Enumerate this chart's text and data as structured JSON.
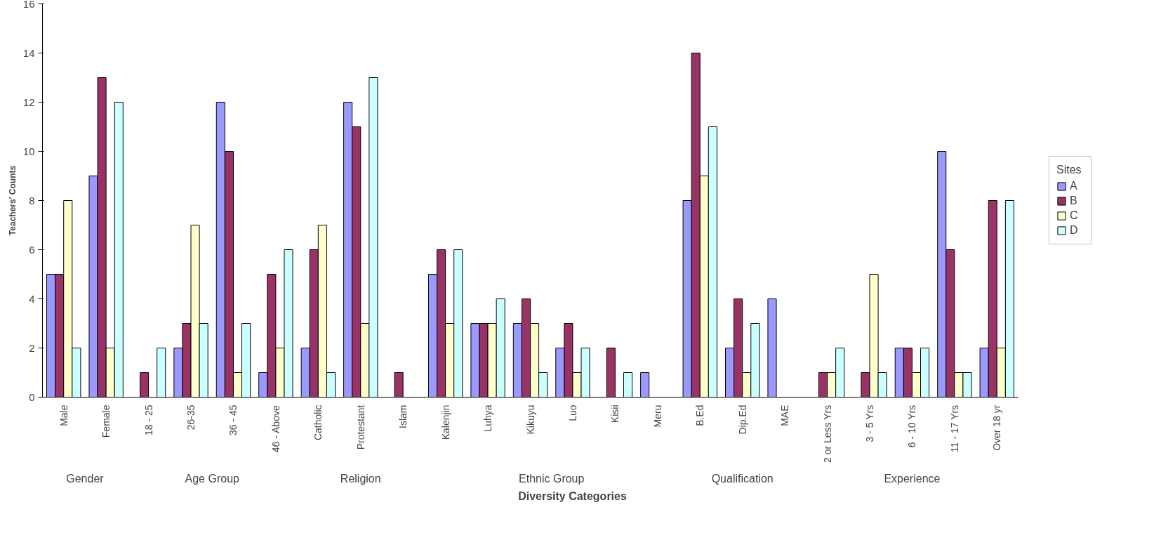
{
  "chart_data": {
    "type": "bar",
    "xlabel": "Diversity Categories",
    "ylabel": "Teachers' Counts",
    "legend_title": "Sites",
    "legend": "right",
    "categories": [
      "Male",
      "Female",
      "18 - 25",
      "26-35",
      "36 - 45",
      "46 - Above",
      "Catholic",
      "Protestant",
      "Islam",
      "Kalenjin",
      "Luhya",
      "Kikuyu",
      "Luo",
      "Kisii",
      "Meru",
      "B.Ed",
      "Dip.Ed",
      "MAE",
      "2 or Less Yrs",
      "3 - 5 Yrs",
      "6 - 10 Yrs",
      "11 - 17 Yrs",
      "Over 18 yr"
    ],
    "series": [
      {
        "name": "A",
        "color": "#9999ff",
        "values": [
          5,
          9,
          null,
          2,
          12,
          1,
          2,
          12,
          null,
          5,
          3,
          3,
          2,
          null,
          1,
          8,
          2,
          4,
          null,
          null,
          2,
          10,
          2
        ]
      },
      {
        "name": "B",
        "color": "#993366",
        "values": [
          5,
          13,
          1,
          3,
          10,
          5,
          6,
          11,
          1,
          6,
          3,
          4,
          3,
          2,
          null,
          14,
          4,
          null,
          1,
          1,
          2,
          6,
          8
        ]
      },
      {
        "name": "C",
        "color": "#ffffcc",
        "values": [
          8,
          2,
          null,
          7,
          1,
          2,
          7,
          3,
          null,
          3,
          3,
          3,
          1,
          null,
          null,
          9,
          1,
          null,
          1,
          5,
          1,
          1,
          2
        ]
      },
      {
        "name": "D",
        "color": "#ccffff",
        "values": [
          2,
          12,
          2,
          3,
          3,
          6,
          1,
          13,
          null,
          6,
          4,
          1,
          2,
          1,
          null,
          11,
          3,
          null,
          2,
          1,
          2,
          1,
          8
        ]
      }
    ],
    "ylim": [
      0,
      16
    ],
    "yticks": [
      0,
      2,
      4,
      6,
      8,
      10,
      12,
      14,
      16
    ],
    "grid": false,
    "annotations": [
      "Gender",
      "Age Group",
      "Religion",
      "Ethnic Group",
      "Qualification",
      "Experience"
    ]
  }
}
